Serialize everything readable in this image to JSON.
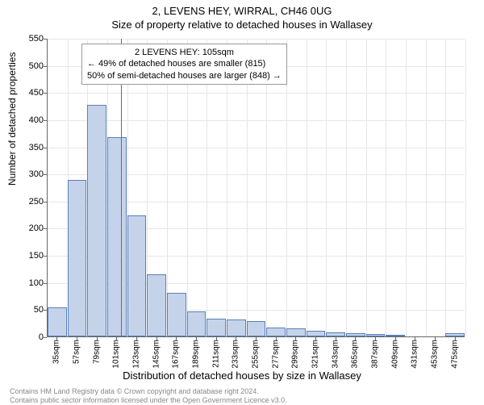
{
  "title_line1": "2, LEVENS HEY, WIRRAL, CH46 0UG",
  "title_line2": "Size of property relative to detached houses in Wallasey",
  "ylabel": "Number of detached properties",
  "xlabel": "Distribution of detached houses by size in Wallasey",
  "footer_line1": "Contains HM Land Registry data © Crown copyright and database right 2024.",
  "footer_line2": "Contains public sector information licensed under the Open Government Licence v3.0.",
  "annotation_line1": "2 LEVENS HEY: 105sqm",
  "annotation_line2": "← 49% of detached houses are smaller (815)",
  "annotation_line3": "50% of semi-detached houses are larger (848) →",
  "chart": {
    "type": "histogram",
    "ylim": [
      0,
      550
    ],
    "ytick_step": 50,
    "x_start": 35,
    "x_step": 22,
    "x_count": 21,
    "x_unit": "sqm",
    "bar_color": "#c5d3ea",
    "bar_border": "#5a7fb8",
    "grid_color": "#e6e6e6",
    "axis_color": "#666666",
    "background": "#ffffff",
    "reference_line_x": 105,
    "reference_line_color": "#d04040",
    "annotation_bg": "#ffffff",
    "annotation_border": "#999999",
    "values": [
      53,
      288,
      426,
      367,
      223,
      114,
      80,
      46,
      33,
      31,
      28,
      16,
      15,
      10,
      8,
      6,
      4,
      2,
      0,
      0,
      6
    ]
  }
}
